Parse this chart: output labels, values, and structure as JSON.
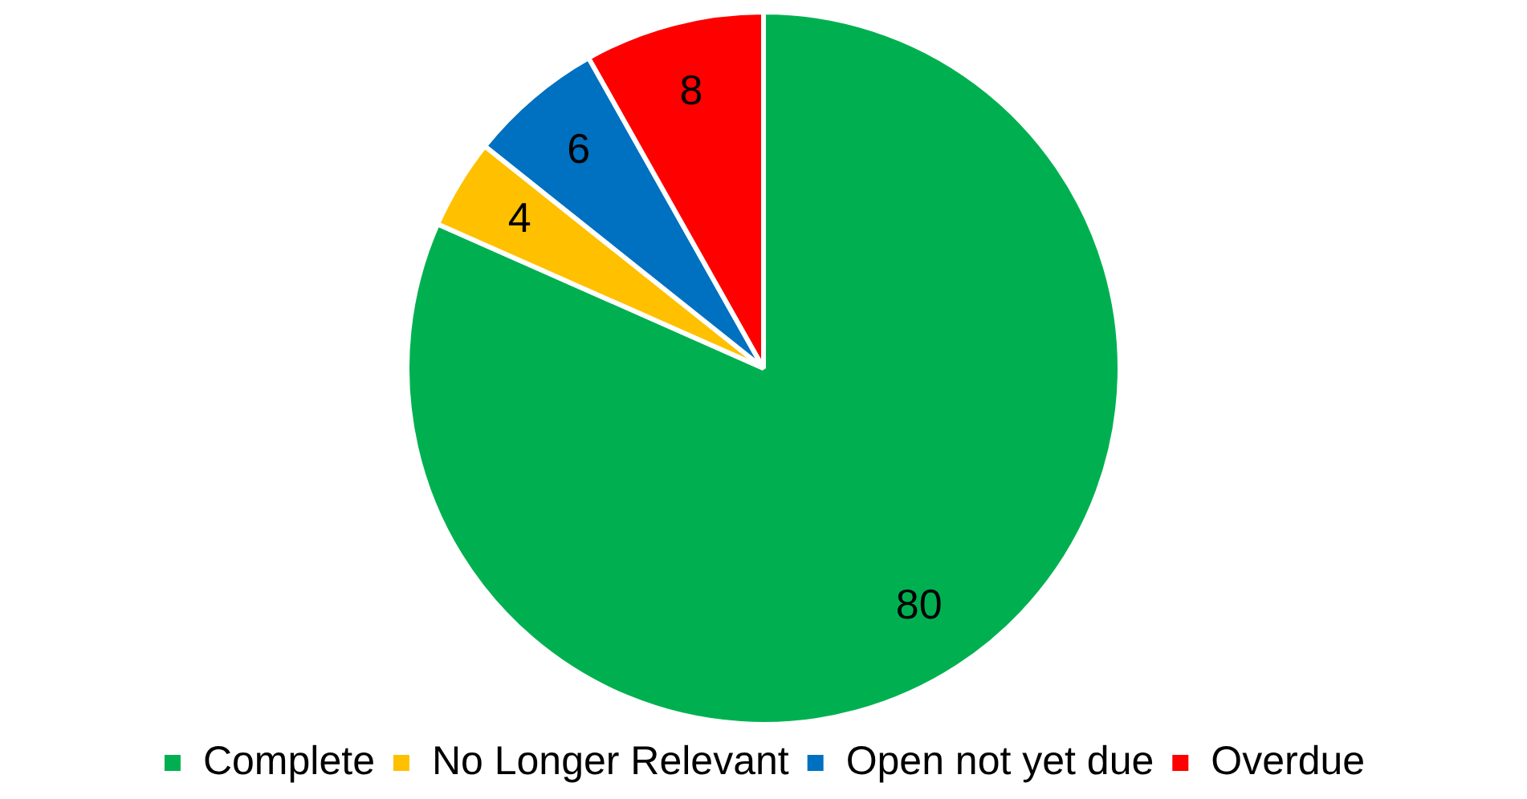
{
  "chart_data": {
    "type": "pie",
    "categories": [
      "Complete",
      "No Longer Relevant",
      "Open not yet due",
      "Overdue"
    ],
    "values": [
      80,
      4,
      6,
      8
    ],
    "colors": [
      "#00b050",
      "#ffc000",
      "#0070c0",
      "#ff0000"
    ],
    "data_labels": true,
    "legend": "bottom"
  }
}
